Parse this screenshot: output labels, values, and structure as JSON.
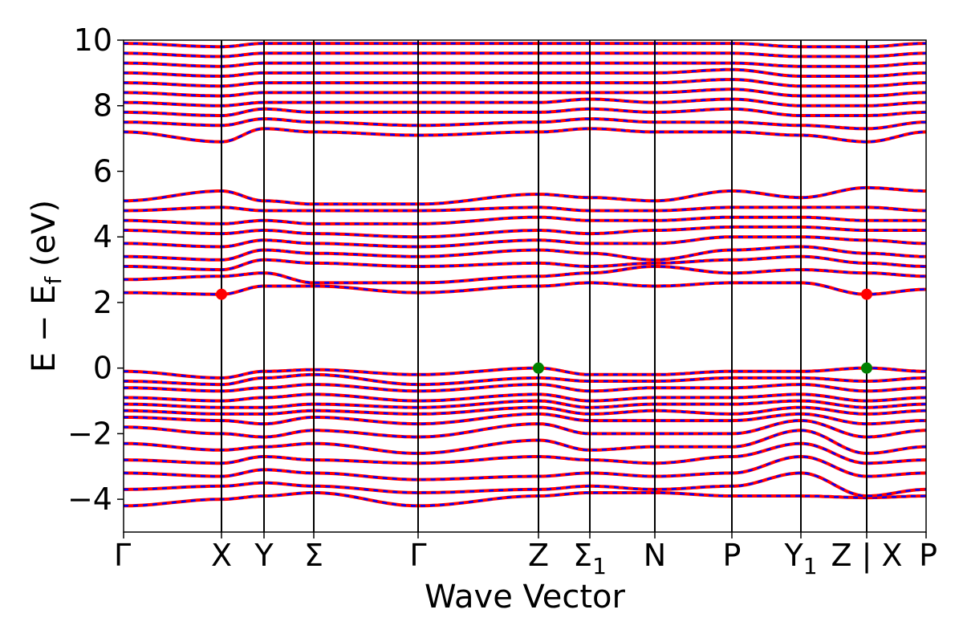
{
  "chart_data": {
    "type": "line",
    "title": "",
    "xlabel": "Wave Vector",
    "ylabel": "E − E",
    "ylabel_subscript": "f",
    "ylabel_unit": " (eV)",
    "ylim": [
      -5,
      10
    ],
    "yticks": [
      -4,
      -2,
      0,
      2,
      4,
      6,
      8,
      10
    ],
    "ytick_labels": [
      "−4",
      "−2",
      "0",
      "2",
      "4",
      "6",
      "8",
      "10"
    ],
    "xlim": [
      0,
      100
    ],
    "kpoints": [
      {
        "label": "Γ",
        "sub": "",
        "x": 0
      },
      {
        "label": "X",
        "sub": "",
        "x": 12.2
      },
      {
        "label": "Y",
        "sub": "",
        "x": 17.5
      },
      {
        "label": "Σ",
        "sub": "",
        "x": 23.7
      },
      {
        "label": "Γ",
        "sub": "",
        "x": 36.7
      },
      {
        "label": "Z",
        "sub": "",
        "x": 51.7
      },
      {
        "label": "Σ",
        "sub": "1",
        "x": 58.1
      },
      {
        "label": "N",
        "sub": "",
        "x": 66.2
      },
      {
        "label": "P",
        "sub": "",
        "x": 75.8
      },
      {
        "label": "Y",
        "sub": "1",
        "x": 84.4
      },
      {
        "label": "Z | X",
        "sub": "",
        "x": 92.6
      },
      {
        "label": "P",
        "sub": "",
        "x": 100
      }
    ],
    "series": [
      {
        "spin": "up",
        "color": "#ff0000",
        "style": "solid"
      },
      {
        "spin": "down",
        "color": "#0000ff",
        "style": "dashed"
      }
    ],
    "bands": [
      [
        -4.2,
        -4.0,
        -3.9,
        -3.8,
        -4.2,
        -3.9,
        -3.8,
        -3.8,
        -3.9,
        -3.9,
        -3.95,
        -3.9
      ],
      [
        -3.7,
        -3.6,
        -3.5,
        -3.6,
        -3.8,
        -3.7,
        -3.6,
        -3.7,
        -3.6,
        -3.2,
        -3.9,
        -3.7
      ],
      [
        -3.2,
        -3.3,
        -3.1,
        -3.2,
        -3.4,
        -3.3,
        -3.2,
        -3.3,
        -3.2,
        -2.7,
        -3.3,
        -3.2
      ],
      [
        -2.8,
        -2.9,
        -2.7,
        -2.8,
        -2.9,
        -2.7,
        -2.8,
        -2.9,
        -2.7,
        -2.3,
        -2.9,
        -2.8
      ],
      [
        -2.3,
        -2.5,
        -2.4,
        -2.3,
        -2.6,
        -2.2,
        -2.5,
        -2.4,
        -2.4,
        -1.9,
        -2.6,
        -2.4
      ],
      [
        -1.8,
        -2.0,
        -2.1,
        -1.9,
        -2.1,
        -1.7,
        -2.0,
        -2.0,
        -2.0,
        -1.6,
        -2.1,
        -1.9
      ],
      [
        -1.5,
        -1.6,
        -1.7,
        -1.5,
        -1.7,
        -1.4,
        -1.6,
        -1.6,
        -1.6,
        -1.4,
        -1.7,
        -1.6
      ],
      [
        -1.3,
        -1.4,
        -1.4,
        -1.3,
        -1.4,
        -1.2,
        -1.4,
        -1.3,
        -1.4,
        -1.2,
        -1.4,
        -1.3
      ],
      [
        -1.1,
        -1.2,
        -1.2,
        -1.1,
        -1.2,
        -1.0,
        -1.2,
        -1.1,
        -1.1,
        -1.0,
        -1.2,
        -1.1
      ],
      [
        -0.9,
        -1.0,
        -0.9,
        -0.8,
        -1.0,
        -0.8,
        -1.0,
        -0.9,
        -0.9,
        -0.8,
        -1.0,
        -0.9
      ],
      [
        -0.6,
        -0.7,
        -0.6,
        -0.5,
        -0.7,
        -0.5,
        -0.7,
        -0.6,
        -0.6,
        -0.5,
        -0.7,
        -0.6
      ],
      [
        -0.4,
        -0.5,
        -0.3,
        -0.2,
        -0.5,
        -0.3,
        -0.4,
        -0.4,
        -0.3,
        -0.3,
        -0.4,
        -0.3
      ],
      [
        -0.1,
        -0.3,
        -0.1,
        -0.05,
        -0.2,
        0.0,
        -0.2,
        -0.2,
        -0.1,
        -0.1,
        0.0,
        -0.1
      ],
      [
        2.3,
        2.25,
        2.5,
        2.5,
        2.3,
        2.5,
        2.6,
        2.5,
        2.6,
        2.6,
        2.25,
        2.4
      ],
      [
        2.7,
        2.8,
        2.9,
        2.6,
        2.6,
        2.8,
        2.9,
        3.1,
        2.9,
        3.0,
        2.9,
        2.8
      ],
      [
        3.1,
        3.0,
        3.3,
        3.2,
        3.1,
        3.2,
        3.1,
        3.2,
        3.3,
        3.4,
        3.2,
        3.1
      ],
      [
        3.4,
        3.3,
        3.6,
        3.5,
        3.4,
        3.6,
        3.5,
        3.3,
        3.6,
        3.7,
        3.5,
        3.4
      ],
      [
        3.8,
        3.7,
        3.9,
        3.8,
        3.7,
        3.9,
        3.8,
        3.8,
        4.0,
        4.0,
        3.9,
        3.8
      ],
      [
        4.2,
        4.1,
        4.2,
        4.1,
        4.0,
        4.2,
        4.1,
        4.2,
        4.3,
        4.3,
        4.2,
        4.2
      ],
      [
        4.5,
        4.4,
        4.5,
        4.4,
        4.4,
        4.6,
        4.5,
        4.5,
        4.6,
        4.6,
        4.5,
        4.5
      ],
      [
        4.8,
        4.9,
        4.8,
        4.8,
        4.8,
        4.9,
        4.8,
        4.8,
        4.9,
        4.9,
        4.9,
        4.8
      ],
      [
        5.1,
        5.4,
        5.1,
        5.0,
        5.0,
        5.3,
        5.2,
        5.1,
        5.4,
        5.2,
        5.5,
        5.4
      ],
      [
        7.2,
        6.9,
        7.3,
        7.2,
        7.1,
        7.2,
        7.3,
        7.2,
        7.2,
        7.1,
        6.9,
        7.2
      ],
      [
        7.5,
        7.4,
        7.6,
        7.5,
        7.4,
        7.5,
        7.6,
        7.5,
        7.5,
        7.4,
        7.3,
        7.5
      ],
      [
        7.8,
        7.7,
        7.9,
        7.8,
        7.8,
        7.8,
        7.9,
        7.8,
        7.9,
        7.7,
        7.7,
        7.8
      ],
      [
        8.1,
        8.0,
        8.1,
        8.1,
        8.1,
        8.1,
        8.2,
        8.1,
        8.2,
        8.0,
        8.0,
        8.1
      ],
      [
        8.4,
        8.3,
        8.4,
        8.4,
        8.4,
        8.4,
        8.4,
        8.4,
        8.5,
        8.3,
        8.3,
        8.4
      ],
      [
        8.7,
        8.6,
        8.7,
        8.7,
        8.7,
        8.7,
        8.7,
        8.7,
        8.8,
        8.6,
        8.6,
        8.7
      ],
      [
        9.0,
        8.9,
        9.0,
        9.0,
        9.0,
        9.0,
        9.0,
        9.0,
        9.1,
        8.9,
        8.9,
        9.0
      ],
      [
        9.3,
        9.2,
        9.3,
        9.3,
        9.3,
        9.3,
        9.3,
        9.3,
        9.3,
        9.2,
        9.2,
        9.3
      ],
      [
        9.6,
        9.5,
        9.6,
        9.6,
        9.6,
        9.6,
        9.6,
        9.6,
        9.6,
        9.5,
        9.5,
        9.6
      ],
      [
        9.9,
        9.8,
        9.9,
        9.9,
        9.9,
        9.9,
        9.9,
        9.9,
        9.9,
        9.8,
        9.8,
        9.9
      ]
    ],
    "cbm_markers": [
      {
        "x": 12.2,
        "y": 2.25,
        "color": "#ff0000"
      },
      {
        "x": 92.6,
        "y": 2.25,
        "color": "#ff0000"
      }
    ],
    "vbm_markers": [
      {
        "x": 51.7,
        "y": 0.0,
        "color": "#008000"
      },
      {
        "x": 92.6,
        "y": 0.0,
        "color": "#008000"
      }
    ],
    "grid": false,
    "legend": "none"
  }
}
